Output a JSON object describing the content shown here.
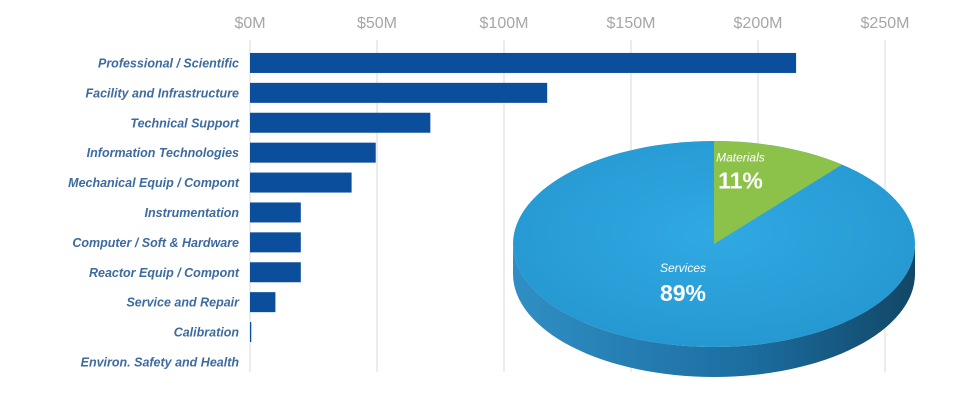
{
  "chart_data": [
    {
      "type": "bar",
      "orientation": "horizontal",
      "categories": [
        "Professional / Scientific",
        "Facility and Infrastructure",
        "Technical Support",
        "Information Technologies",
        "Mechanical Equip / Compont",
        "Instrumentation",
        "Computer / Soft & Hardware",
        "Reactor Equip / Compont",
        "Service and Repair",
        "Calibration",
        "Environ. Safety and Health"
      ],
      "values": [
        215,
        117,
        71,
        49.5,
        40,
        20,
        20,
        20,
        10,
        0.5,
        0
      ],
      "unit": "$M",
      "xlim": [
        0,
        250
      ],
      "xticks": [
        0,
        50,
        100,
        150,
        200,
        250
      ],
      "xtick_labels": [
        "$0M",
        "$50M",
        "$100M",
        "$150M",
        "$200M",
        "$250M"
      ],
      "axis_position": "top",
      "grid": true,
      "bar_color": "#0b4e9c",
      "title": "",
      "xlabel": "",
      "ylabel": ""
    },
    {
      "type": "pie",
      "style": "3d",
      "slices": [
        {
          "label": "Services",
          "value": 89,
          "display": "89%",
          "color": "#29a3dd"
        },
        {
          "label": "Materials",
          "value": 11,
          "display": "11%",
          "color": "#8cc24a"
        }
      ]
    }
  ]
}
